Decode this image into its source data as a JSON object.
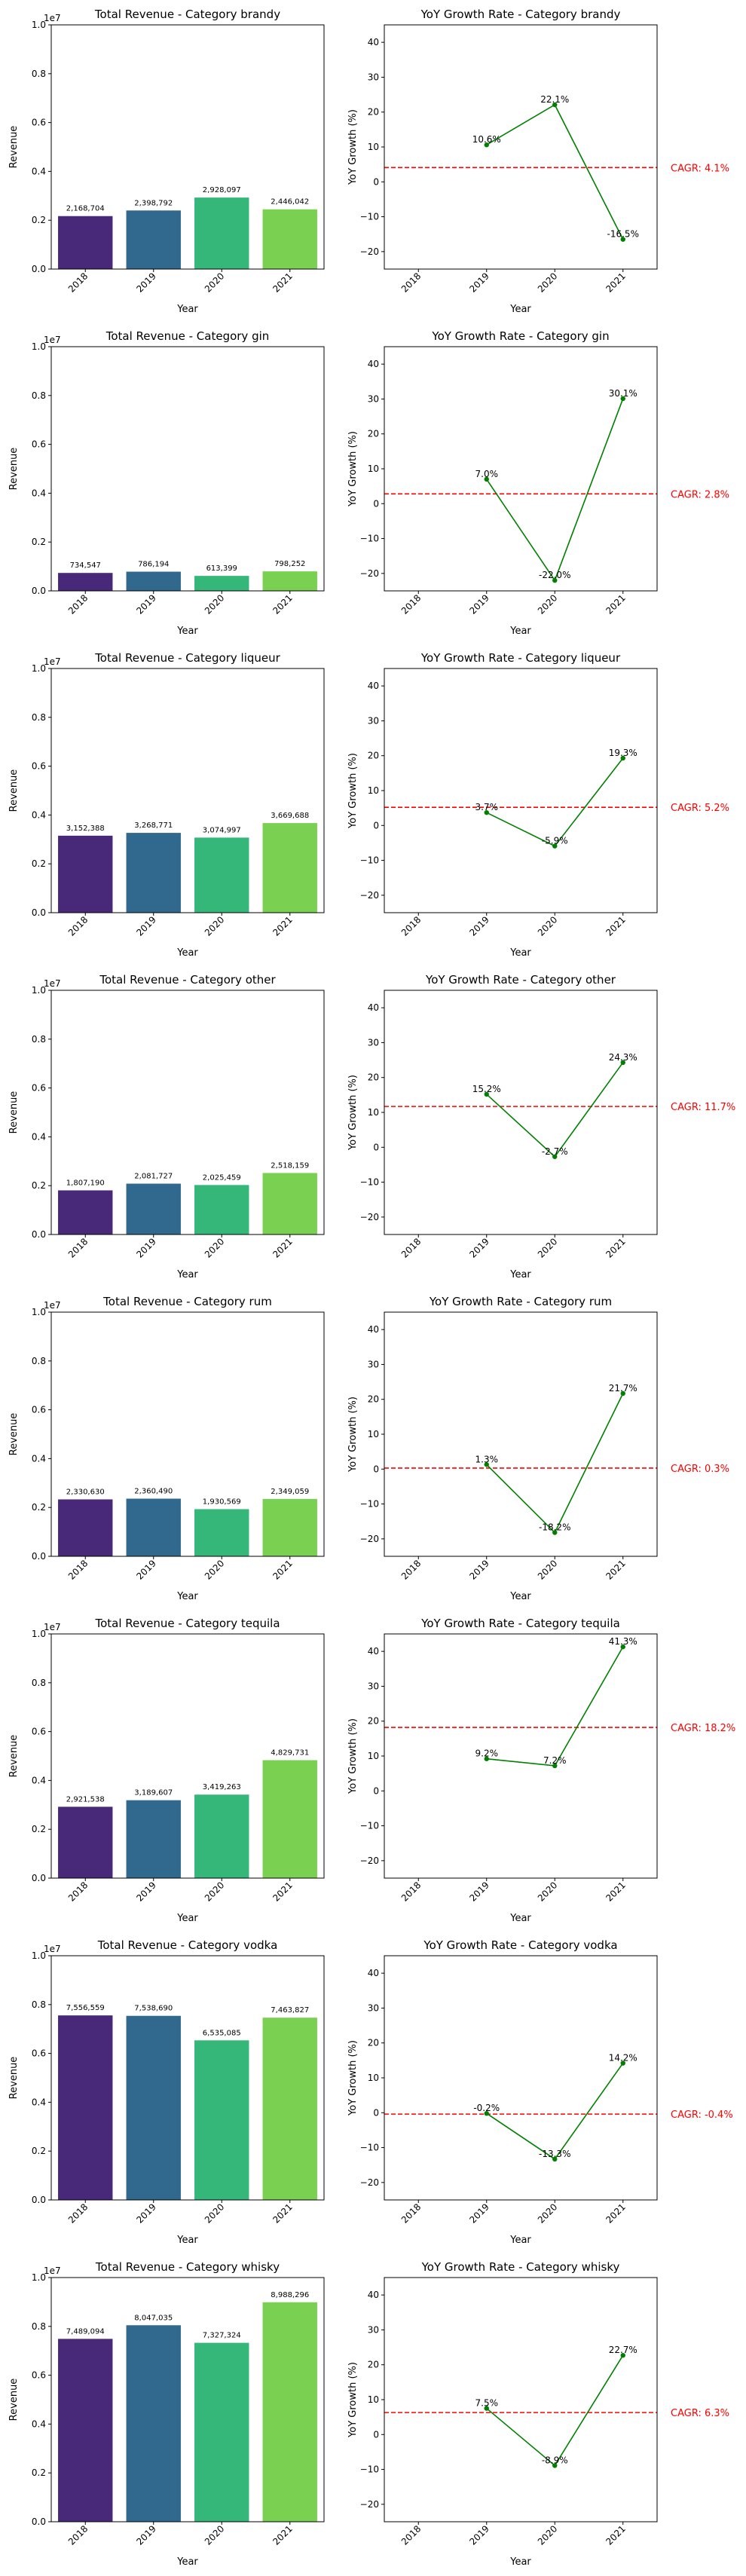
{
  "years": [
    "2018",
    "2019",
    "2020",
    "2021"
  ],
  "bar_colors": [
    "#482878",
    "#31688e",
    "#35b779",
    "#7ad151"
  ],
  "line_color": "#008000",
  "cagr_color": "#ff0000",
  "revenue_scale_label": "1e7",
  "bar_yticks": [
    "0.0",
    "0.2",
    "0.4",
    "0.6",
    "0.8",
    "1.0"
  ],
  "growth_yticks": [
    "−20",
    "−10",
    "0",
    "10",
    "20",
    "30",
    "40"
  ],
  "chart_data": [
    {
      "type": "bar",
      "title": "Total Revenue - Category brandy",
      "xlabel": "Year",
      "ylabel": "Revenue",
      "categories": [
        "2018",
        "2019",
        "2020",
        "2021"
      ],
      "values": [
        2168704,
        2398792,
        2928097,
        2446042
      ],
      "value_labels": [
        "2,168,704",
        "2,398,792",
        "2,928,097",
        "2,446,042"
      ],
      "ylim": [
        0,
        10000000
      ]
    },
    {
      "type": "line",
      "title": "YoY Growth Rate - Category brandy",
      "xlabel": "Year",
      "ylabel": "YoY Growth (%)",
      "categories": [
        "2018",
        "2019",
        "2020",
        "2021"
      ],
      "x": [
        "2019",
        "2020",
        "2021"
      ],
      "values": [
        10.6,
        22.1,
        -16.5
      ],
      "value_labels": [
        "10.6%",
        "22.1%",
        "-16.5%"
      ],
      "cagr": 4.1,
      "cagr_label": "CAGR: 4.1%",
      "ylim": [
        -25,
        45
      ]
    },
    {
      "type": "bar",
      "title": "Total Revenue - Category gin",
      "xlabel": "Year",
      "ylabel": "Revenue",
      "categories": [
        "2018",
        "2019",
        "2020",
        "2021"
      ],
      "values": [
        734547,
        786194,
        613399,
        798252
      ],
      "value_labels": [
        "734,547",
        "786,194",
        "613,399",
        "798,252"
      ],
      "ylim": [
        0,
        10000000
      ]
    },
    {
      "type": "line",
      "title": "YoY Growth Rate - Category gin",
      "xlabel": "Year",
      "ylabel": "YoY Growth (%)",
      "categories": [
        "2018",
        "2019",
        "2020",
        "2021"
      ],
      "x": [
        "2019",
        "2020",
        "2021"
      ],
      "values": [
        7.0,
        -22.0,
        30.1
      ],
      "value_labels": [
        "7.0%",
        "-22.0%",
        "30.1%"
      ],
      "cagr": 2.8,
      "cagr_label": "CAGR: 2.8%",
      "ylim": [
        -25,
        45
      ]
    },
    {
      "type": "bar",
      "title": "Total Revenue - Category liqueur",
      "xlabel": "Year",
      "ylabel": "Revenue",
      "categories": [
        "2018",
        "2019",
        "2020",
        "2021"
      ],
      "values": [
        3152388,
        3268771,
        3074997,
        3669688
      ],
      "value_labels": [
        "3,152,388",
        "3,268,771",
        "3,074,997",
        "3,669,688"
      ],
      "ylim": [
        0,
        10000000
      ]
    },
    {
      "type": "line",
      "title": "YoY Growth Rate - Category liqueur",
      "xlabel": "Year",
      "ylabel": "YoY Growth (%)",
      "categories": [
        "2018",
        "2019",
        "2020",
        "2021"
      ],
      "x": [
        "2019",
        "2020",
        "2021"
      ],
      "values": [
        3.7,
        -5.9,
        19.3
      ],
      "value_labels": [
        "3.7%",
        "-5.9%",
        "19.3%"
      ],
      "cagr": 5.2,
      "cagr_label": "CAGR: 5.2%",
      "ylim": [
        -25,
        45
      ]
    },
    {
      "type": "bar",
      "title": "Total Revenue - Category other",
      "xlabel": "Year",
      "ylabel": "Revenue",
      "categories": [
        "2018",
        "2019",
        "2020",
        "2021"
      ],
      "values": [
        1807190,
        2081727,
        2025459,
        2518159
      ],
      "value_labels": [
        "1,807,190",
        "2,081,727",
        "2,025,459",
        "2,518,159"
      ],
      "ylim": [
        0,
        10000000
      ]
    },
    {
      "type": "line",
      "title": "YoY Growth Rate - Category other",
      "xlabel": "Year",
      "ylabel": "YoY Growth (%)",
      "categories": [
        "2018",
        "2019",
        "2020",
        "2021"
      ],
      "x": [
        "2019",
        "2020",
        "2021"
      ],
      "values": [
        15.2,
        -2.7,
        24.3
      ],
      "value_labels": [
        "15.2%",
        "-2.7%",
        "24.3%"
      ],
      "cagr": 11.7,
      "cagr_label": "CAGR: 11.7%",
      "ylim": [
        -25,
        45
      ]
    },
    {
      "type": "bar",
      "title": "Total Revenue - Category rum",
      "xlabel": "Year",
      "ylabel": "Revenue",
      "categories": [
        "2018",
        "2019",
        "2020",
        "2021"
      ],
      "values": [
        2330630,
        2360490,
        1930569,
        2349059
      ],
      "value_labels": [
        "2,330,630",
        "2,360,490",
        "1,930,569",
        "2,349,059"
      ],
      "ylim": [
        0,
        10000000
      ]
    },
    {
      "type": "line",
      "title": "YoY Growth Rate - Category rum",
      "xlabel": "Year",
      "ylabel": "YoY Growth (%)",
      "categories": [
        "2018",
        "2019",
        "2020",
        "2021"
      ],
      "x": [
        "2019",
        "2020",
        "2021"
      ],
      "values": [
        1.3,
        -18.2,
        21.7
      ],
      "value_labels": [
        "1.3%",
        "-18.2%",
        "21.7%"
      ],
      "cagr": 0.3,
      "cagr_label": "CAGR: 0.3%",
      "ylim": [
        -25,
        45
      ]
    },
    {
      "type": "bar",
      "title": "Total Revenue - Category tequila",
      "xlabel": "Year",
      "ylabel": "Revenue",
      "categories": [
        "2018",
        "2019",
        "2020",
        "2021"
      ],
      "values": [
        2921538,
        3189607,
        3419263,
        4829731
      ],
      "value_labels": [
        "2,921,538",
        "3,189,607",
        "3,419,263",
        "4,829,731"
      ],
      "ylim": [
        0,
        10000000
      ]
    },
    {
      "type": "line",
      "title": "YoY Growth Rate - Category tequila",
      "xlabel": "Year",
      "ylabel": "YoY Growth (%)",
      "categories": [
        "2018",
        "2019",
        "2020",
        "2021"
      ],
      "x": [
        "2019",
        "2020",
        "2021"
      ],
      "values": [
        9.2,
        7.2,
        41.3
      ],
      "value_labels": [
        "9.2%",
        "7.2%",
        "41.3%"
      ],
      "cagr": 18.2,
      "cagr_label": "CAGR: 18.2%",
      "ylim": [
        -25,
        45
      ]
    },
    {
      "type": "bar",
      "title": "Total Revenue - Category vodka",
      "xlabel": "Year",
      "ylabel": "Revenue",
      "categories": [
        "2018",
        "2019",
        "2020",
        "2021"
      ],
      "values": [
        7556559,
        7538690,
        6535085,
        7463827
      ],
      "value_labels": [
        "7,556,559",
        "7,538,690",
        "6,535,085",
        "7,463,827"
      ],
      "ylim": [
        0,
        10000000
      ]
    },
    {
      "type": "line",
      "title": "YoY Growth Rate - Category vodka",
      "xlabel": "Year",
      "ylabel": "YoY Growth (%)",
      "categories": [
        "2018",
        "2019",
        "2020",
        "2021"
      ],
      "x": [
        "2019",
        "2020",
        "2021"
      ],
      "values": [
        -0.2,
        -13.3,
        14.2
      ],
      "value_labels": [
        "-0.2%",
        "-13.3%",
        "14.2%"
      ],
      "cagr": -0.4,
      "cagr_label": "CAGR: -0.4%",
      "ylim": [
        -25,
        45
      ]
    },
    {
      "type": "bar",
      "title": "Total Revenue - Category whisky",
      "xlabel": "Year",
      "ylabel": "Revenue",
      "categories": [
        "2018",
        "2019",
        "2020",
        "2021"
      ],
      "values": [
        7489094,
        8047035,
        7327324,
        8988296
      ],
      "value_labels": [
        "7,489,094",
        "8,047,035",
        "7,327,324",
        "8,988,296"
      ],
      "ylim": [
        0,
        10000000
      ]
    },
    {
      "type": "line",
      "title": "YoY Growth Rate - Category whisky",
      "xlabel": "Year",
      "ylabel": "YoY Growth (%)",
      "categories": [
        "2018",
        "2019",
        "2020",
        "2021"
      ],
      "x": [
        "2019",
        "2020",
        "2021"
      ],
      "values": [
        7.5,
        -8.9,
        22.7
      ],
      "value_labels": [
        "7.5%",
        "-8.9%",
        "22.7%"
      ],
      "cagr": 6.3,
      "cagr_label": "CAGR: 6.3%",
      "ylim": [
        -25,
        45
      ]
    }
  ]
}
